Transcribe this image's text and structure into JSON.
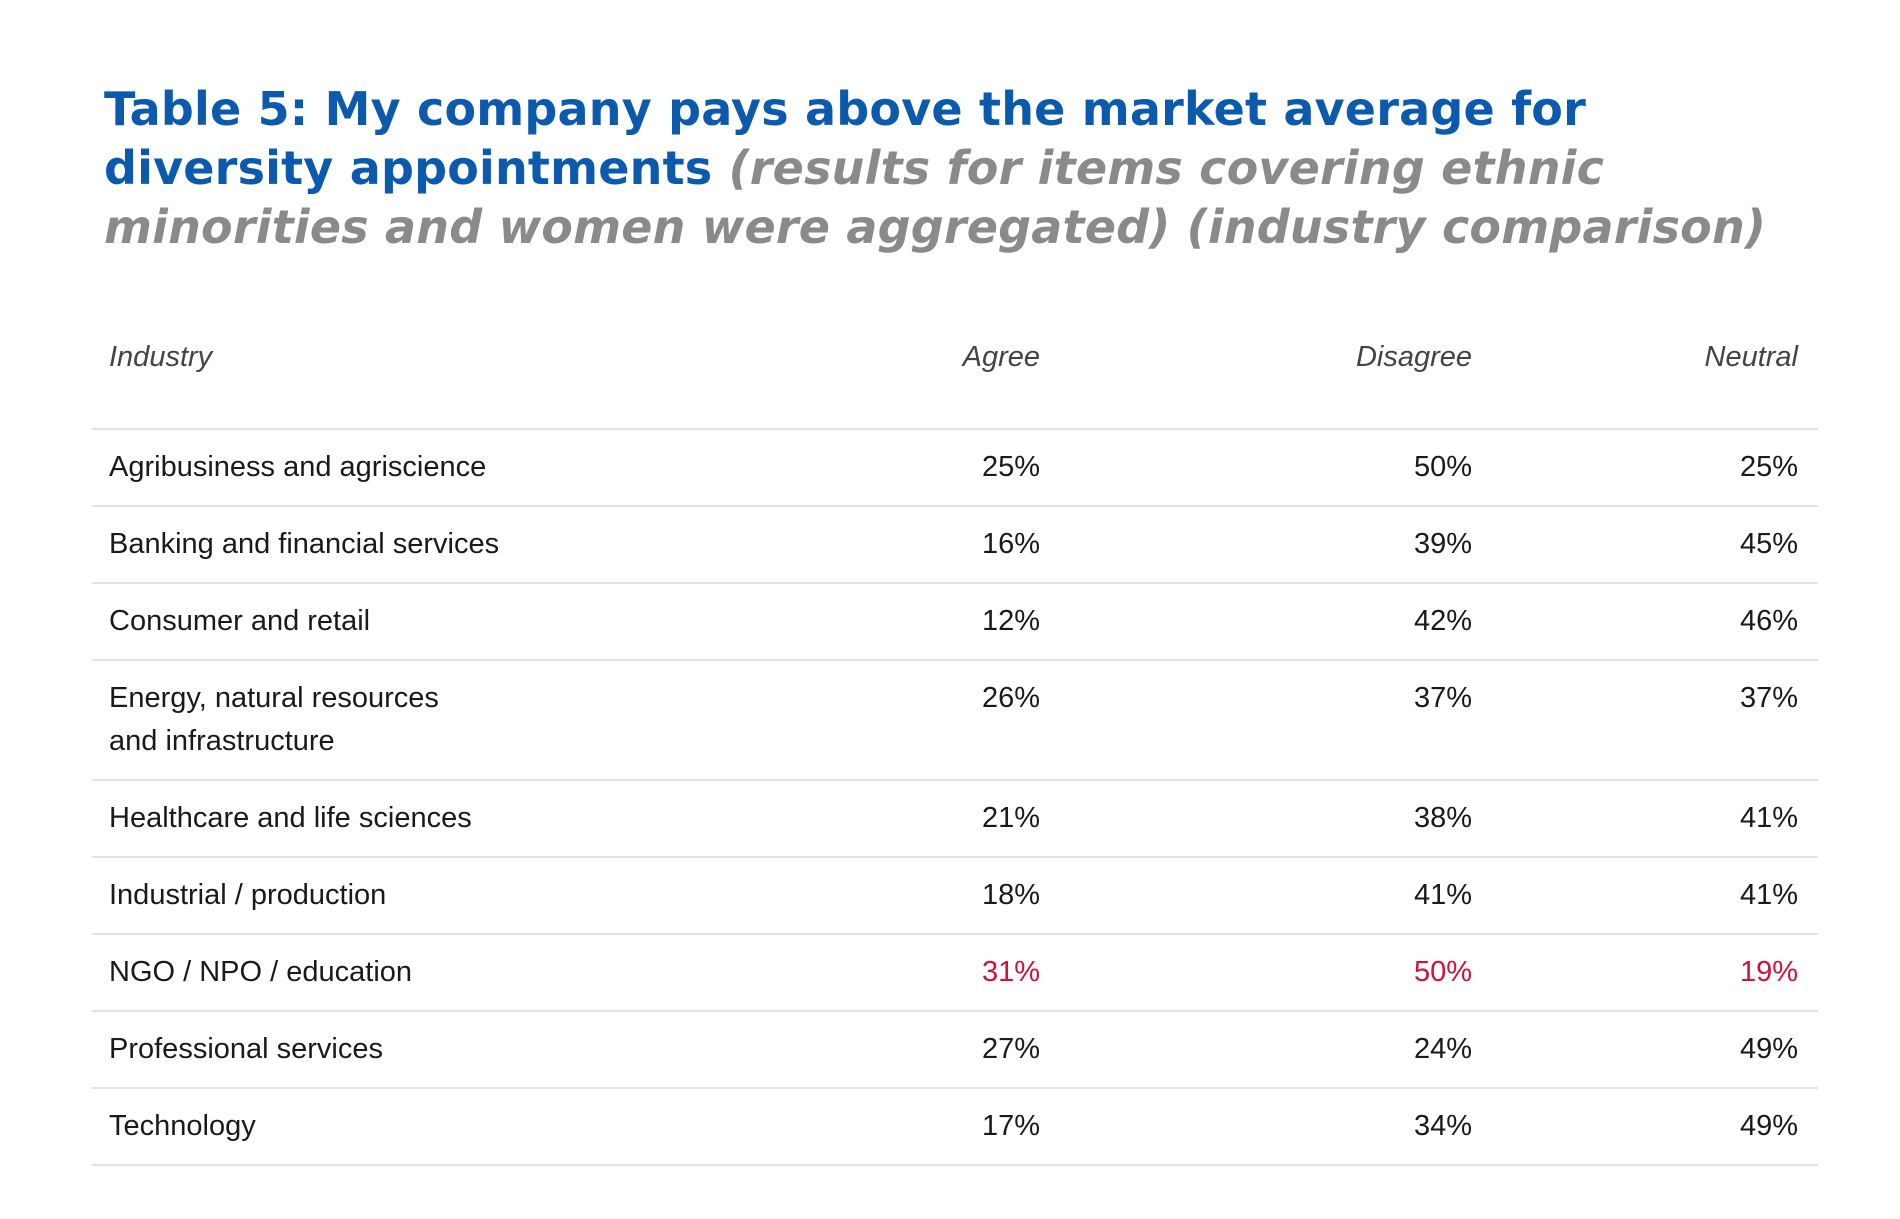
{
  "title": {
    "main": "Table 5: My company pays above the market average for diversity appointments",
    "subtitle": "(results for items covering ethnic minorities and women were aggregated) (industry comparison)"
  },
  "colors": {
    "title": "#0b5aad",
    "subtitle": "#8a8a8a",
    "highlight": "#d2103e"
  },
  "table": {
    "headers": [
      "Industry",
      "Agree",
      "Disagree",
      "Neutral"
    ],
    "rows": [
      {
        "industry": "Agribusiness and agriscience",
        "agree": "25%",
        "disagree": "50%",
        "neutral": "25%"
      },
      {
        "industry": "Banking and financial services",
        "agree": "16%",
        "disagree": "39%",
        "neutral": "45%"
      },
      {
        "industry": "Consumer and retail",
        "agree": "12%",
        "disagree": "42%",
        "neutral": "46%"
      },
      {
        "industry": "Energy, natural resources and infrastructure",
        "agree": "26%",
        "disagree": "37%",
        "neutral": "37%"
      },
      {
        "industry": "Healthcare and life sciences",
        "agree": "21%",
        "disagree": "38%",
        "neutral": "41%"
      },
      {
        "industry": "Industrial / production",
        "agree": "18%",
        "disagree": "41%",
        "neutral": "41%"
      },
      {
        "industry": "NGO / NPO / education",
        "agree": "31%",
        "disagree": "50%",
        "neutral": "19%",
        "highlight": true
      },
      {
        "industry": "Professional services",
        "agree": "27%",
        "disagree": "24%",
        "neutral": "49%"
      },
      {
        "industry": "Technology",
        "agree": "17%",
        "disagree": "34%",
        "neutral": "49%"
      }
    ]
  }
}
